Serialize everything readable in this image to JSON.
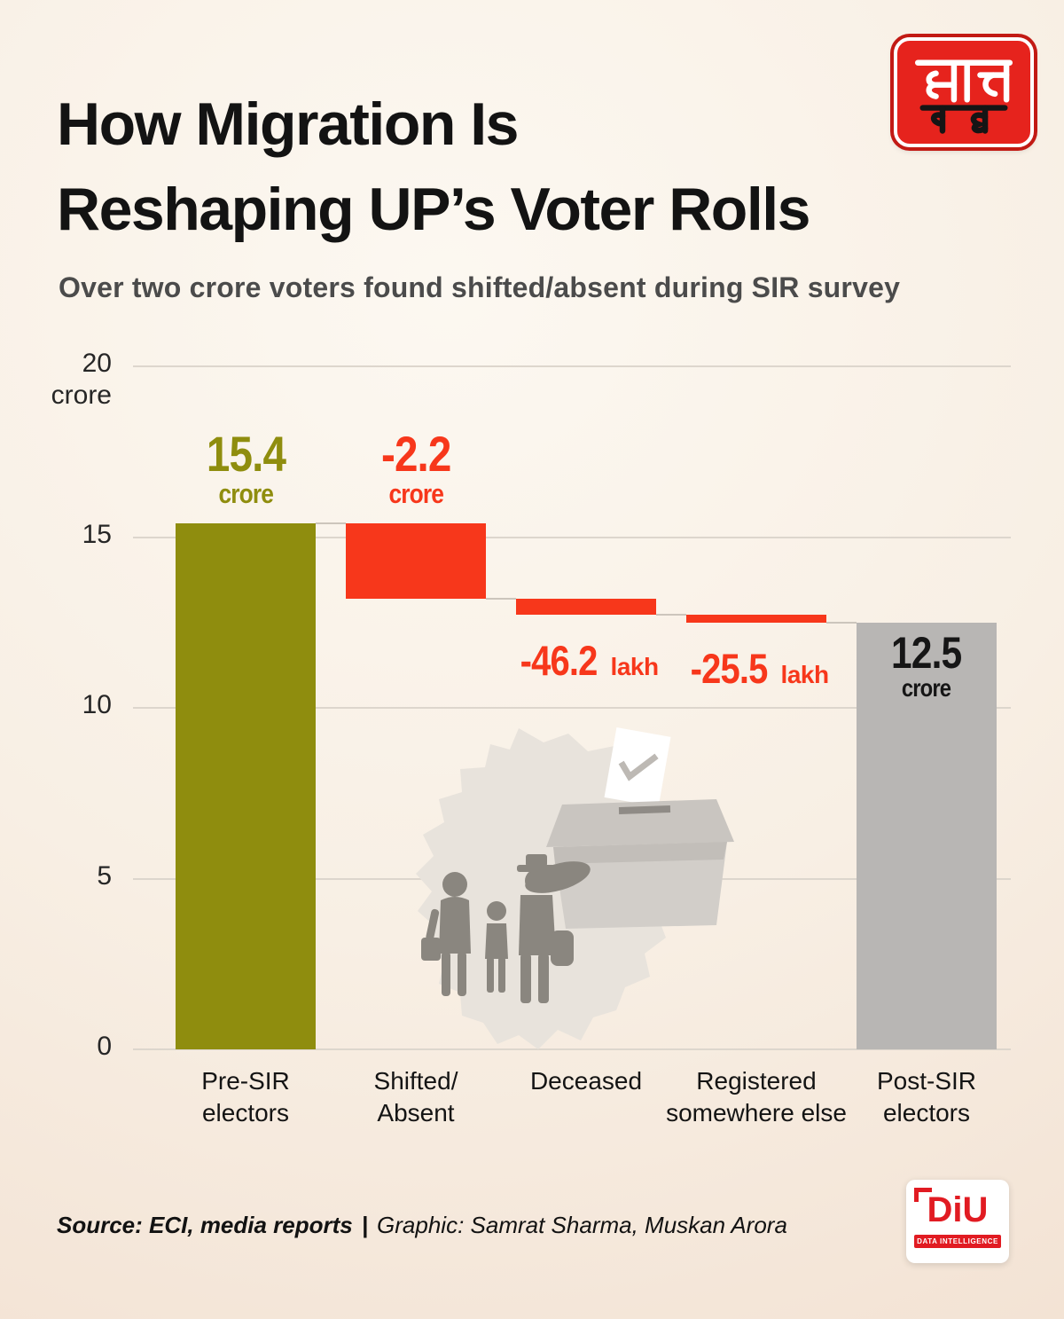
{
  "header": {
    "title_line1": "How Migration Is",
    "title_line2": "Reshaping UP’s Voter Rolls",
    "subtitle": "Over two crore voters found shifted/absent during SIR survey"
  },
  "logo": {
    "brand": "आज तक"
  },
  "chart_data": {
    "type": "bar",
    "subtype": "waterfall",
    "title": "How Migration Is Reshaping UP’s Voter Rolls",
    "unit": "crore",
    "ylim": [
      0,
      20
    ],
    "yticks": [
      0,
      5,
      10,
      15,
      20
    ],
    "y_axis_unit_label": "crore",
    "grid": true,
    "categories": [
      "Pre-SIR electors",
      "Shifted/Absent",
      "Deceased",
      "Registered somewhere else",
      "Post-SIR electors"
    ],
    "bars": [
      {
        "category": "Pre-SIR electors",
        "label_lines": [
          "Pre-SIR",
          "electors"
        ],
        "kind": "total",
        "value_crore": 15.4,
        "value_display": "15.4",
        "value_unit": "crore",
        "color": "#8f8d0e",
        "label_pos": "above"
      },
      {
        "category": "Shifted/Absent",
        "label_lines": [
          "Shifted/",
          "Absent"
        ],
        "kind": "delta",
        "value_crore": -2.2,
        "value_display": "-2.2",
        "value_unit": "crore",
        "color": "#f7371b",
        "label_pos": "above"
      },
      {
        "category": "Deceased",
        "label_lines": [
          "Deceased"
        ],
        "kind": "delta",
        "value_crore": -0.462,
        "value_display": "-46.2",
        "value_unit": "lakh",
        "color": "#f7371b",
        "label_pos": "below"
      },
      {
        "category": "Registered somewhere else",
        "label_lines": [
          "Registered",
          "somewhere else"
        ],
        "kind": "delta",
        "value_crore": -0.255,
        "value_display": "-25.5",
        "value_unit": "lakh",
        "color": "#f7371b",
        "label_pos": "below"
      },
      {
        "category": "Post-SIR electors",
        "label_lines": [
          "Post-SIR",
          "electors"
        ],
        "kind": "total",
        "value_crore": 12.5,
        "value_display": "12.5",
        "value_unit": "crore",
        "color": "#b8b6b4",
        "label_pos": "inside",
        "label_color": "#161616"
      }
    ]
  },
  "footer": {
    "source": "Source: ECI, media reports",
    "separator": "|",
    "credit": "Graphic: Samrat Sharma, Muskan Arora"
  },
  "diu": {
    "name": "DiU",
    "tagline": "DATA INTELLIGENCE UNIT"
  }
}
